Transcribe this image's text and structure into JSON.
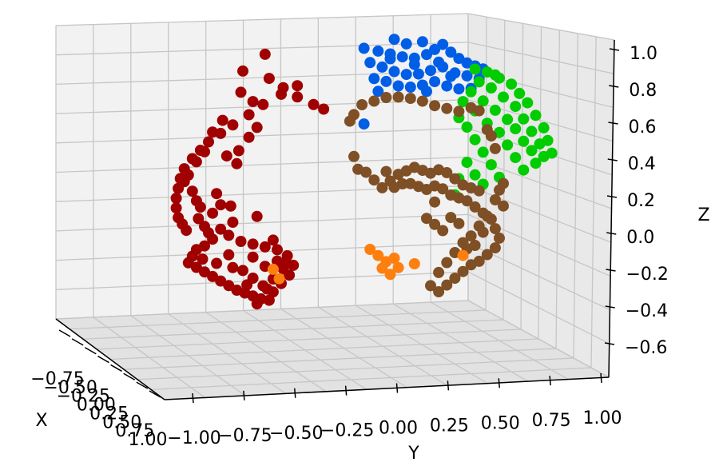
{
  "chart_data": {
    "type": "scatter3d",
    "axes": {
      "x": {
        "label": "X",
        "ticks": [
          "−0.75",
          "−0.50",
          "−0.25",
          "0.00",
          "0.25",
          "0.50",
          "0.75",
          "1.00"
        ],
        "range": [
          -0.9,
          1.1
        ]
      },
      "y": {
        "label": "Y",
        "ticks": [
          "−1.00",
          "−0.75",
          "−0.50",
          "−0.25",
          "0.00",
          "0.25",
          "0.50",
          "0.75",
          "1.00"
        ],
        "range": [
          -1.1,
          1.1
        ]
      },
      "z": {
        "label": "Z",
        "ticks": [
          "1.0",
          "0.8",
          "0.6",
          "0.4",
          "0.2",
          "0.0",
          "−0.2",
          "−0.4",
          "−0.6"
        ],
        "range": [
          -0.7,
          1.1
        ]
      }
    },
    "grid": true,
    "colors": {
      "dark_red": "#a00000",
      "blue": "#005ee6",
      "green": "#00cc00",
      "brown": "#7f4f25",
      "orange": "#ff7f0e"
    },
    "series": [
      {
        "color": "#a00000",
        "points": [
          [
            -0.55,
            0.85
          ],
          [
            -0.42,
            0.8
          ],
          [
            -0.35,
            0.74
          ],
          [
            -0.28,
            0.68
          ],
          [
            -0.2,
            0.63
          ],
          [
            -0.15,
            0.6
          ],
          [
            -0.28,
            0.75
          ],
          [
            -0.36,
            0.7
          ],
          [
            -0.45,
            0.64
          ],
          [
            -0.52,
            0.58
          ],
          [
            -0.6,
            0.52
          ],
          [
            -0.66,
            0.47
          ],
          [
            -0.72,
            0.42
          ],
          [
            -0.76,
            0.37
          ],
          [
            -0.8,
            0.32
          ],
          [
            -0.84,
            0.26
          ],
          [
            -0.86,
            0.2
          ],
          [
            -0.87,
            0.14
          ],
          [
            -0.88,
            0.08
          ],
          [
            -0.88,
            0.02
          ],
          [
            -0.87,
            -0.04
          ],
          [
            -0.85,
            -0.08
          ],
          [
            -0.83,
            -0.12
          ],
          [
            -0.7,
            0.48
          ],
          [
            -0.74,
            0.36
          ],
          [
            -0.78,
            0.3
          ],
          [
            -0.82,
            0.22
          ],
          [
            -0.84,
            0.18
          ],
          [
            -0.8,
            0.12
          ],
          [
            -0.78,
            0.06
          ],
          [
            -0.76,
            0.02
          ],
          [
            -0.77,
            -0.05
          ],
          [
            -0.74,
            -0.1
          ],
          [
            -0.72,
            -0.14
          ],
          [
            -0.7,
            -0.18
          ],
          [
            -0.74,
            -0.22
          ],
          [
            -0.78,
            -0.24
          ],
          [
            -0.8,
            -0.28
          ],
          [
            -0.82,
            -0.32
          ],
          [
            -0.78,
            -0.35
          ],
          [
            -0.74,
            -0.38
          ],
          [
            -0.7,
            -0.41
          ],
          [
            -0.66,
            -0.44
          ],
          [
            -0.62,
            -0.47
          ],
          [
            -0.58,
            -0.5
          ],
          [
            -0.54,
            -0.52
          ],
          [
            -0.5,
            -0.54
          ],
          [
            -0.46,
            -0.56
          ],
          [
            -0.42,
            -0.57
          ],
          [
            -0.4,
            -0.52
          ],
          [
            -0.36,
            -0.47
          ],
          [
            -0.32,
            -0.42
          ],
          [
            -0.3,
            -0.36
          ],
          [
            -0.33,
            -0.3
          ],
          [
            -0.38,
            -0.26
          ],
          [
            -0.44,
            -0.24
          ],
          [
            -0.5,
            -0.22
          ],
          [
            -0.56,
            -0.2
          ],
          [
            -0.62,
            -0.16
          ],
          [
            -0.66,
            -0.12
          ],
          [
            -0.6,
            -0.08
          ],
          [
            -0.66,
            0.03
          ],
          [
            -0.61,
            0.02
          ],
          [
            -0.68,
            0.1
          ],
          [
            -0.63,
            0.33
          ],
          [
            -0.57,
            0.36
          ],
          [
            -0.52,
            0.44
          ],
          [
            -0.48,
            0.5
          ],
          [
            -0.58,
            0.28
          ],
          [
            -0.62,
            -0.28
          ],
          [
            -0.55,
            -0.38
          ],
          [
            -0.5,
            -0.43
          ],
          [
            -0.45,
            -0.48
          ],
          [
            -0.4,
            -0.44
          ],
          [
            -0.35,
            -0.38
          ],
          [
            -0.44,
            -0.36
          ],
          [
            -0.5,
            -0.3
          ],
          [
            -0.7,
            -0.02
          ],
          [
            -0.75,
            -0.3
          ],
          [
            -0.68,
            -0.33
          ],
          [
            -0.6,
            -0.36
          ],
          [
            -0.53,
            -0.47
          ],
          [
            -0.48,
            -0.59
          ],
          [
            -0.43,
            -0.5
          ],
          [
            -0.38,
            -0.33
          ],
          [
            -0.34,
            -0.34
          ],
          [
            -0.4,
            -0.2
          ],
          [
            -0.48,
            -0.05
          ],
          [
            -0.44,
            0.95
          ],
          [
            -0.56,
            0.72
          ],
          [
            -0.5,
            0.66
          ],
          [
            -0.65,
            0.55
          ]
        ]
      },
      {
        "color": "#005ee6",
        "points": [
          [
            0.05,
            0.97
          ],
          [
            0.12,
            0.95
          ],
          [
            0.18,
            0.93
          ],
          [
            0.24,
            0.91
          ],
          [
            0.3,
            0.9
          ],
          [
            0.36,
            0.92
          ],
          [
            0.4,
            0.95
          ],
          [
            0.44,
            0.98
          ],
          [
            0.48,
            0.93
          ],
          [
            0.52,
            0.89
          ],
          [
            0.56,
            0.86
          ],
          [
            0.6,
            0.84
          ],
          [
            0.64,
            0.82
          ],
          [
            0.08,
            0.88
          ],
          [
            0.14,
            0.85
          ],
          [
            0.2,
            0.82
          ],
          [
            0.26,
            0.8
          ],
          [
            0.32,
            0.8
          ],
          [
            0.38,
            0.82
          ],
          [
            0.44,
            0.84
          ],
          [
            0.5,
            0.8
          ],
          [
            0.56,
            0.78
          ],
          [
            0.62,
            0.76
          ],
          [
            0.1,
            0.78
          ],
          [
            0.16,
            0.76
          ],
          [
            0.22,
            0.73
          ],
          [
            0.28,
            0.72
          ],
          [
            0.34,
            0.73
          ],
          [
            0.4,
            0.75
          ],
          [
            0.46,
            0.72
          ],
          [
            0.52,
            0.7
          ],
          [
            0.58,
            0.7
          ],
          [
            0.2,
            1.02
          ],
          [
            0.34,
            1.0
          ],
          [
            0.26,
            0.99
          ],
          [
            0.42,
            0.87
          ],
          [
            0.12,
            0.7
          ],
          [
            0.05,
            0.5
          ],
          [
            0.36,
            0.69
          ],
          [
            0.3,
            0.86
          ],
          [
            0.18,
            0.9
          ],
          [
            0.48,
            0.78
          ]
        ]
      },
      {
        "color": "#00cc00",
        "points": [
          [
            0.6,
            0.82
          ],
          [
            0.66,
            0.8
          ],
          [
            0.72,
            0.76
          ],
          [
            0.78,
            0.72
          ],
          [
            0.82,
            0.66
          ],
          [
            0.86,
            0.6
          ],
          [
            0.9,
            0.52
          ],
          [
            0.94,
            0.44
          ],
          [
            0.96,
            0.36
          ],
          [
            0.98,
            0.28
          ],
          [
            0.62,
            0.74
          ],
          [
            0.68,
            0.7
          ],
          [
            0.74,
            0.64
          ],
          [
            0.8,
            0.58
          ],
          [
            0.84,
            0.5
          ],
          [
            0.88,
            0.42
          ],
          [
            0.92,
            0.34
          ],
          [
            0.94,
            0.26
          ],
          [
            0.58,
            0.68
          ],
          [
            0.64,
            0.62
          ],
          [
            0.7,
            0.56
          ],
          [
            0.76,
            0.5
          ],
          [
            0.8,
            0.44
          ],
          [
            0.84,
            0.36
          ],
          [
            0.88,
            0.3
          ],
          [
            0.9,
            0.22
          ],
          [
            0.6,
            0.56
          ],
          [
            0.66,
            0.48
          ],
          [
            0.72,
            0.42
          ],
          [
            0.76,
            0.34
          ],
          [
            0.8,
            0.26
          ],
          [
            0.84,
            0.18
          ],
          [
            0.56,
            0.46
          ],
          [
            0.6,
            0.38
          ],
          [
            0.64,
            0.3
          ],
          [
            0.68,
            0.22
          ],
          [
            0.72,
            0.14
          ],
          [
            0.56,
            0.24
          ],
          [
            0.6,
            0.16
          ],
          [
            0.64,
            0.1
          ],
          [
            0.52,
            0.14
          ],
          [
            0.5,
            0.04
          ],
          [
            0.54,
            0.62
          ],
          [
            0.52,
            0.52
          ],
          [
            0.7,
            0.78
          ]
        ]
      },
      {
        "color": "#7f4f25",
        "points": [
          [
            0.04,
            0.62
          ],
          [
            0.1,
            0.64
          ],
          [
            0.16,
            0.66
          ],
          [
            0.22,
            0.66
          ],
          [
            0.28,
            0.65
          ],
          [
            0.34,
            0.63
          ],
          [
            0.4,
            0.6
          ],
          [
            0.46,
            0.58
          ],
          [
            0.52,
            0.56
          ],
          [
            0.58,
            0.58
          ],
          [
            0.62,
            0.56
          ],
          [
            0.0,
            0.56
          ],
          [
            -0.02,
            0.52
          ],
          [
            0.0,
            0.3
          ],
          [
            0.02,
            0.22
          ],
          [
            0.06,
            0.2
          ],
          [
            0.1,
            0.15
          ],
          [
            0.14,
            0.1
          ],
          [
            0.18,
            0.14
          ],
          [
            0.22,
            0.18
          ],
          [
            0.26,
            0.2
          ],
          [
            0.3,
            0.22
          ],
          [
            0.34,
            0.2
          ],
          [
            0.38,
            0.18
          ],
          [
            0.42,
            0.2
          ],
          [
            0.46,
            0.18
          ],
          [
            0.5,
            0.14
          ],
          [
            0.54,
            0.1
          ],
          [
            0.58,
            0.08
          ],
          [
            0.62,
            0.06
          ],
          [
            0.16,
            0.2
          ],
          [
            0.2,
            0.1
          ],
          [
            0.24,
            0.12
          ],
          [
            0.28,
            0.12
          ],
          [
            0.32,
            0.1
          ],
          [
            0.36,
            0.08
          ],
          [
            0.4,
            0.1
          ],
          [
            0.44,
            0.08
          ],
          [
            0.48,
            0.04
          ],
          [
            0.52,
            0.02
          ],
          [
            0.56,
            0.0
          ],
          [
            0.6,
            -0.04
          ],
          [
            0.64,
            -0.08
          ],
          [
            0.68,
            -0.12
          ],
          [
            0.7,
            -0.18
          ],
          [
            0.72,
            -0.24
          ],
          [
            0.7,
            -0.3
          ],
          [
            0.66,
            -0.34
          ],
          [
            0.62,
            -0.38
          ],
          [
            0.58,
            -0.4
          ],
          [
            0.54,
            -0.44
          ],
          [
            0.5,
            -0.48
          ],
          [
            0.46,
            -0.52
          ],
          [
            0.42,
            -0.56
          ],
          [
            0.38,
            -0.52
          ],
          [
            0.42,
            -0.44
          ],
          [
            0.46,
            -0.38
          ],
          [
            0.5,
            -0.32
          ],
          [
            0.54,
            -0.26
          ],
          [
            0.58,
            -0.22
          ],
          [
            0.62,
            -0.16
          ],
          [
            0.66,
            -0.1
          ],
          [
            0.7,
            0.0
          ],
          [
            0.72,
            0.06
          ],
          [
            0.74,
            0.1
          ],
          [
            0.64,
            -0.2
          ],
          [
            0.36,
            -0.1
          ],
          [
            0.4,
            -0.14
          ],
          [
            0.44,
            -0.18
          ],
          [
            0.56,
            -0.3
          ],
          [
            0.6,
            -0.28
          ],
          [
            0.48,
            -0.1
          ],
          [
            0.52,
            -0.14
          ],
          [
            0.4,
            0.0
          ],
          [
            0.66,
            0.44
          ],
          [
            0.7,
            0.32
          ],
          [
            0.68,
            0.4
          ],
          [
            0.74,
            -0.04
          ]
        ]
      },
      {
        "color": "#ff7f0e",
        "points": [
          [
            -0.4,
            -0.38
          ],
          [
            -0.37,
            -0.44
          ],
          [
            0.08,
            -0.28
          ],
          [
            0.12,
            -0.32
          ],
          [
            0.16,
            -0.36
          ],
          [
            0.2,
            -0.34
          ],
          [
            0.14,
            -0.4
          ],
          [
            0.22,
            -0.4
          ],
          [
            0.3,
            -0.38
          ],
          [
            0.18,
            -0.44
          ],
          [
            0.54,
            -0.34
          ]
        ]
      }
    ]
  }
}
